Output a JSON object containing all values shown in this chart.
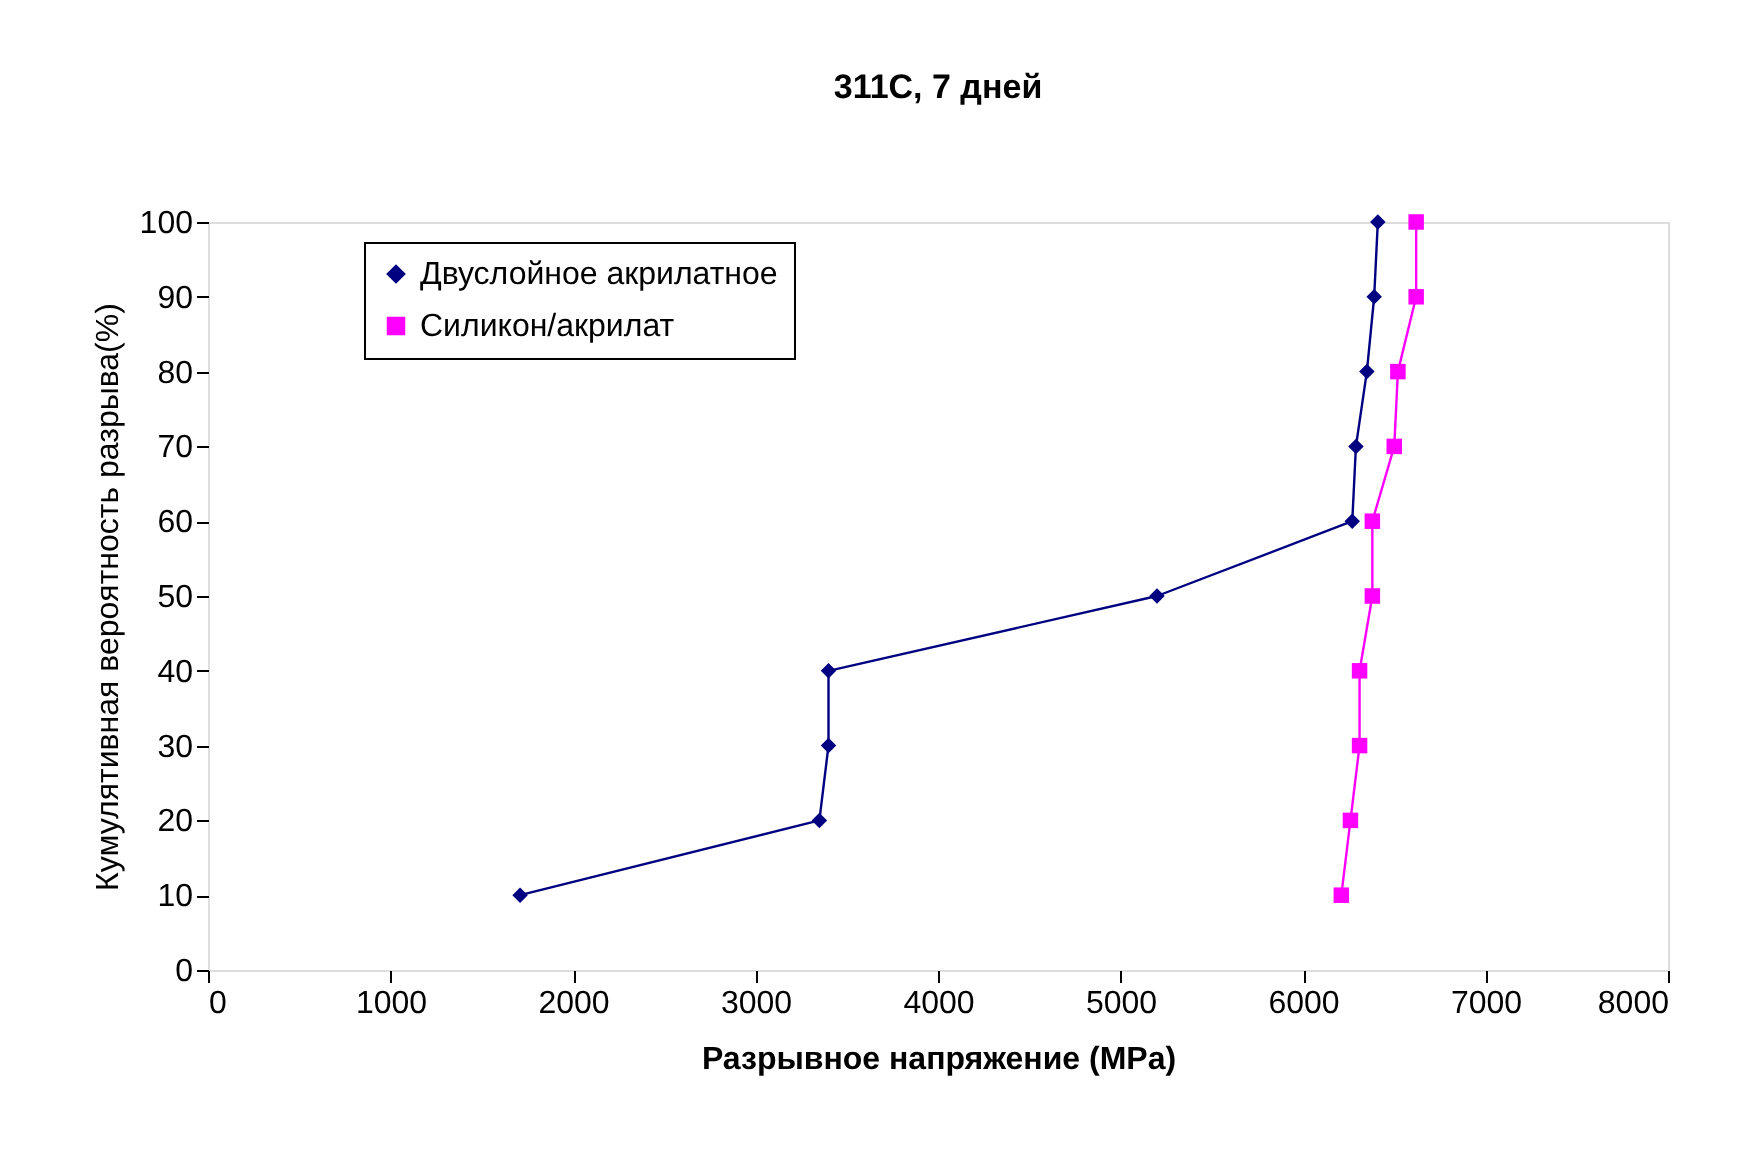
{
  "chart_data": {
    "type": "line",
    "title": "311C, 7 дней",
    "xlabel": "Разрывное напряжение (MPa)",
    "ylabel": "Кумулятивная вероятность разрыва(%)",
    "xlim": [
      0,
      8000
    ],
    "xticks": [
      0,
      1000,
      2000,
      3000,
      4000,
      5000,
      6000,
      7000,
      8000
    ],
    "ylim": [
      0,
      100
    ],
    "yticks": [
      0,
      10,
      20,
      30,
      40,
      50,
      60,
      70,
      80,
      90,
      100
    ],
    "grid": false,
    "legend": "top left",
    "line_style": "solid",
    "series": [
      {
        "name": "Двуслойное акрилатное",
        "color": "#000080",
        "marker": "diamond",
        "x": [
          1710,
          3350,
          3400,
          3400,
          5200,
          6270,
          6290,
          6350,
          6390,
          6410
        ],
        "values": [
          10,
          20,
          30,
          40,
          50,
          60,
          70,
          80,
          90,
          100
        ]
      },
      {
        "name": "Силикон/акрилат",
        "color": "#ff00ff",
        "marker": "square",
        "x": [
          6210,
          6260,
          6310,
          6310,
          6380,
          6380,
          6500,
          6520,
          6620,
          6620
        ],
        "values": [
          10,
          20,
          30,
          40,
          50,
          60,
          70,
          80,
          90,
          100
        ]
      }
    ]
  }
}
